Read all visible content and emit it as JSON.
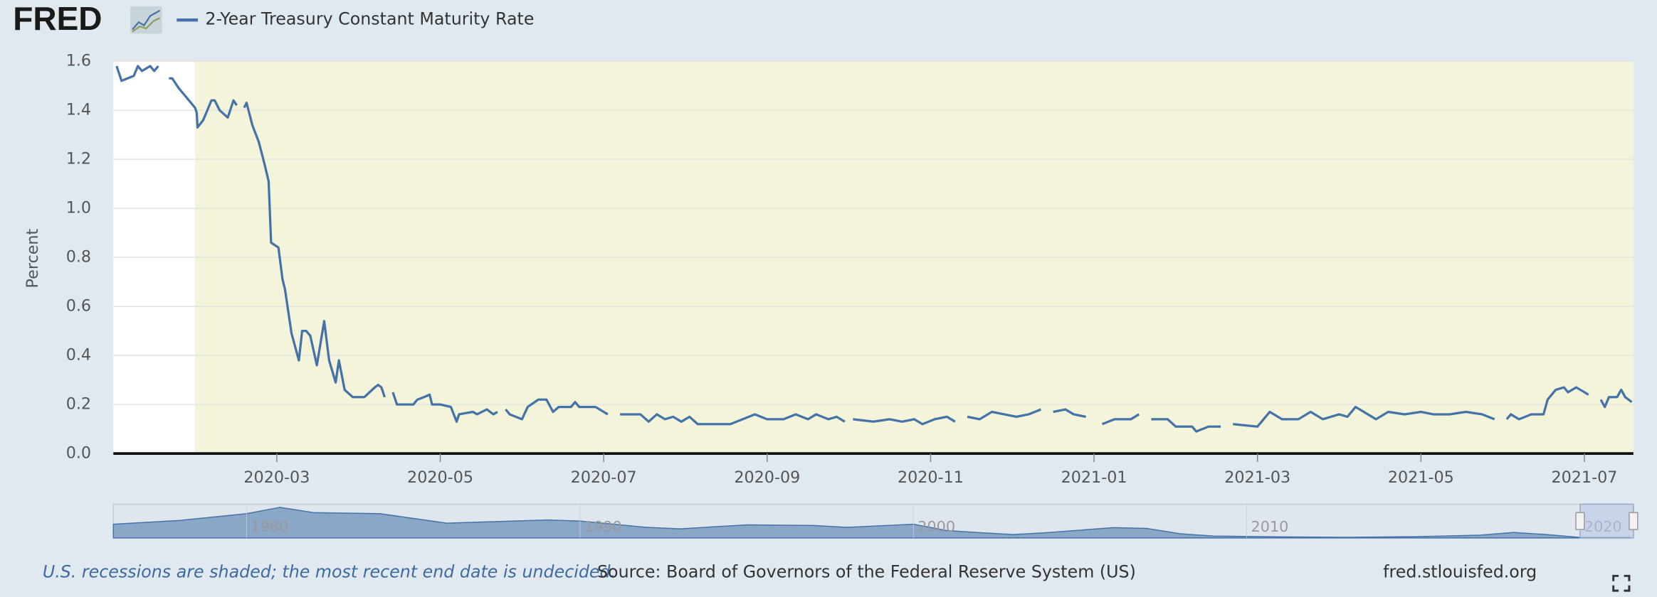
{
  "header": {
    "logo": "FRED"
  },
  "chart_data": [
    {
      "type": "line",
      "ylabel": "Percent",
      "xlim": [
        0,
        18.6
      ],
      "xticks": [
        {
          "value": 2,
          "label": "2020-03"
        },
        {
          "value": 4,
          "label": "2020-05"
        },
        {
          "value": 6,
          "label": "2020-07"
        },
        {
          "value": 8,
          "label": "2020-09"
        },
        {
          "value": 10,
          "label": "2020-11"
        },
        {
          "value": 12,
          "label": "2021-01"
        },
        {
          "value": 14,
          "label": "2021-03"
        },
        {
          "value": 16,
          "label": "2021-05"
        },
        {
          "value": 18,
          "label": "2021-07"
        }
      ],
      "ylim": [
        0,
        1.6
      ],
      "yticks": [
        {
          "value": 0,
          "label": "0.0"
        },
        0.2,
        0.4,
        0.6,
        0.8,
        {
          "value": 1,
          "label": "1.0"
        },
        1.2,
        1.4,
        1.6
      ],
      "grid": true,
      "recession_start": 1,
      "x": [
        0.04,
        0.1,
        0.25,
        0.3,
        0.35,
        0.45,
        0.5,
        0.55,
        0.6,
        0.68,
        0.72,
        0.8,
        0.9,
        0.95,
        1.0,
        1.02,
        1.03,
        1.1,
        1.15,
        1.2,
        1.24,
        1.3,
        1.4,
        1.47,
        1.51,
        1.55,
        1.6,
        1.63,
        1.7,
        1.78,
        1.85,
        1.9,
        1.93,
        2.02,
        2.07,
        2.1,
        2.18,
        2.27,
        2.31,
        2.36,
        2.41,
        2.49,
        2.58,
        2.64,
        2.72,
        2.76,
        2.83,
        2.93,
        3.07,
        3.2,
        3.24,
        3.28,
        3.32,
        3.37,
        3.42,
        3.47,
        3.67,
        3.72,
        3.8,
        3.87,
        3.9,
        4.0,
        4.13,
        4.2,
        4.23,
        4.4,
        4.45,
        4.57,
        4.65,
        4.7,
        4.75,
        4.8,
        4.85,
        5.0,
        5.07,
        5.2,
        5.3,
        5.38,
        5.45,
        5.6,
        5.65,
        5.7,
        5.9,
        6.0,
        6.05,
        6.12,
        6.2,
        6.45,
        6.55,
        6.65,
        6.75,
        6.85,
        6.95,
        7.05,
        7.15,
        7.55,
        7.7,
        7.85,
        8.0,
        8.2,
        8.35,
        8.5,
        8.6,
        8.75,
        8.85,
        8.95,
        9.0,
        9.05,
        9.3,
        9.5,
        9.65,
        9.8,
        9.9,
        10.05,
        10.2,
        10.3,
        10.37,
        10.45,
        10.6,
        10.75,
        10.9,
        11.05,
        11.2,
        11.35,
        11.42,
        11.5,
        11.65,
        11.75,
        11.9,
        12.0,
        12.1,
        12.25,
        12.45,
        12.55,
        12.62,
        12.7,
        12.9,
        13.0,
        13.2,
        13.25,
        13.4,
        13.55,
        13.62,
        13.7,
        14.0,
        14.15,
        14.3,
        14.5,
        14.65,
        14.8,
        15.0,
        15.1,
        15.2,
        15.35,
        15.45,
        15.6,
        15.8,
        16.0,
        16.15,
        16.35,
        16.55,
        16.75,
        16.9,
        16.97,
        17.05,
        17.1,
        17.2,
        17.35,
        17.5,
        17.55,
        17.65,
        17.75,
        17.8,
        17.9,
        18.0,
        18.05,
        18.12,
        18.2,
        18.25,
        18.3,
        18.4,
        18.45,
        18.5,
        18.58
      ],
      "series": [
        {
          "name": "2-Year Treasury Constant Maturity Rate",
          "color": "#4572a7",
          "values": [
            1.58,
            1.52,
            1.54,
            1.58,
            1.56,
            1.58,
            1.56,
            1.58,
            null,
            1.53,
            1.53,
            1.49,
            1.45,
            1.43,
            1.41,
            1.39,
            1.33,
            1.36,
            1.4,
            1.44,
            1.44,
            1.4,
            1.37,
            1.44,
            1.42,
            null,
            1.41,
            1.43,
            1.34,
            1.27,
            1.18,
            1.11,
            0.86,
            0.84,
            0.71,
            0.67,
            0.49,
            0.38,
            0.5,
            0.5,
            0.48,
            0.36,
            0.54,
            0.38,
            0.29,
            0.38,
            0.26,
            0.23,
            0.23,
            0.27,
            0.28,
            0.27,
            0.23,
            null,
            0.25,
            0.2,
            0.2,
            0.22,
            0.23,
            0.24,
            0.2,
            0.2,
            0.19,
            0.13,
            0.16,
            0.17,
            0.16,
            0.18,
            0.16,
            0.17,
            null,
            0.18,
            0.16,
            0.14,
            0.19,
            0.22,
            0.22,
            0.17,
            0.19,
            0.19,
            0.21,
            0.19,
            0.19,
            0.17,
            0.16,
            null,
            0.16,
            0.16,
            0.13,
            0.16,
            0.14,
            0.15,
            0.13,
            0.15,
            0.12,
            0.12,
            0.14,
            0.16,
            0.14,
            0.14,
            0.16,
            0.14,
            0.16,
            0.14,
            0.15,
            0.13,
            null,
            0.14,
            0.13,
            0.14,
            0.13,
            0.14,
            0.12,
            0.14,
            0.15,
            0.13,
            null,
            0.15,
            0.14,
            0.17,
            0.16,
            0.15,
            0.16,
            0.18,
            null,
            0.17,
            0.18,
            0.16,
            0.15,
            null,
            0.12,
            0.14,
            0.14,
            0.16,
            null,
            0.14,
            0.14,
            0.11,
            0.11,
            0.09,
            0.11,
            0.11,
            null,
            0.12,
            0.11,
            0.17,
            0.14,
            0.14,
            0.17,
            0.14,
            0.16,
            0.15,
            0.19,
            0.16,
            0.14,
            0.17,
            0.16,
            0.17,
            0.16,
            0.16,
            0.17,
            0.16,
            0.14,
            null,
            0.14,
            0.16,
            0.14,
            0.16,
            0.16,
            0.22,
            0.26,
            0.27,
            0.25,
            0.27,
            0.25,
            0.24,
            null,
            0.22,
            0.19,
            0.23,
            0.23,
            0.26,
            0.23,
            0.21
          ]
        }
      ]
    },
    {
      "type": "area",
      "xlim": [
        1976,
        2021.6
      ],
      "ylim": [
        0,
        16
      ],
      "xticks": [
        1980,
        1990,
        2000,
        2010,
        2020
      ],
      "selection_start": 2020,
      "color": "#4572a7",
      "x": [
        1976,
        1978,
        1980,
        1981,
        1982,
        1984,
        1986,
        1988,
        1989,
        1990,
        1992,
        1993,
        1995,
        1997,
        1998,
        2000,
        2001,
        2002,
        2003,
        2004,
        2006,
        2007,
        2008,
        2009,
        2011,
        2013,
        2015,
        2017,
        2018,
        2019,
        2020,
        2021.5
      ],
      "values": [
        6.5,
        8.3,
        11.5,
        14.5,
        12,
        11.5,
        7,
        8,
        8.5,
        8,
        5,
        4.3,
        6.2,
        5.9,
        5,
        6.5,
        3.5,
        2.5,
        1.6,
        2.5,
        4.9,
        4.5,
        2,
        0.9,
        0.5,
        0.3,
        0.6,
        1.3,
        2.6,
        1.6,
        0.2,
        0.2
      ]
    }
  ],
  "footer": {
    "note": "U.S. recessions are shaded; the most recent end date is undecided.",
    "source": "Source: Board of Governors of the Federal Reserve System (US)",
    "url": "fred.stlouisfed.org"
  }
}
